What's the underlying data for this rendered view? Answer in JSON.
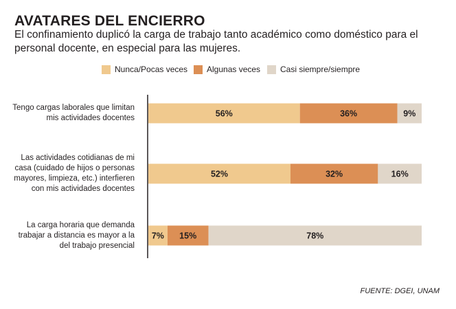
{
  "header": {
    "title": "AVATARES DEL ENCIERRO",
    "subtitle": "El confinamiento duplicó la carga de trabajo tanto académico como doméstico para el personal docente, en especial para las mujeres."
  },
  "source": "FUENTE: DGEI, UNAM",
  "colors": {
    "nunca": "#f0c98e",
    "algunas": "#dc8f55",
    "casi": "#e0d6c9",
    "axis": "#231f20",
    "text": "#231f20"
  },
  "chart_data": {
    "type": "bar",
    "orientation": "horizontal",
    "stacked": true,
    "title": "AVATARES DEL ENCIERRO",
    "legend_position": "top",
    "xlim": [
      0,
      100
    ],
    "categories": [
      "Tengo cargas laborales que limitan mis actividades docentes",
      "Las actividades cotidianas de mi casa (cuidado de hijos o personas mayores, limpieza, etc.) interfieren con mis actividades docentes",
      "La carga horaria que demanda trabajar a distancia es mayor a la del trabajo presencial"
    ],
    "category_lines": [
      [
        "Tengo cargas laborales que limitan",
        "mis actividades docentes"
      ],
      [
        "Las actividades cotidianas de mi",
        "casa (cuidado de hijos o personas",
        "mayores, limpieza, etc.) interfieren",
        "con mis actividades docentes"
      ],
      [
        "La carga horaria que demanda",
        "trabajar a distancia es mayor a la",
        "del trabajo presencial"
      ]
    ],
    "series": [
      {
        "name": "Nunca/Pocas veces",
        "key": "nunca",
        "values": [
          56,
          52,
          7
        ],
        "labels": [
          "56%",
          "52%",
          "7%"
        ]
      },
      {
        "name": "Algunas veces",
        "key": "algunas",
        "values": [
          36,
          32,
          15
        ],
        "labels": [
          "36%",
          "32%",
          "15%"
        ]
      },
      {
        "name": "Casi siempre/siempre",
        "key": "casi",
        "values": [
          9,
          16,
          78
        ],
        "labels": [
          "9%",
          "16%",
          "78%"
        ]
      }
    ]
  }
}
